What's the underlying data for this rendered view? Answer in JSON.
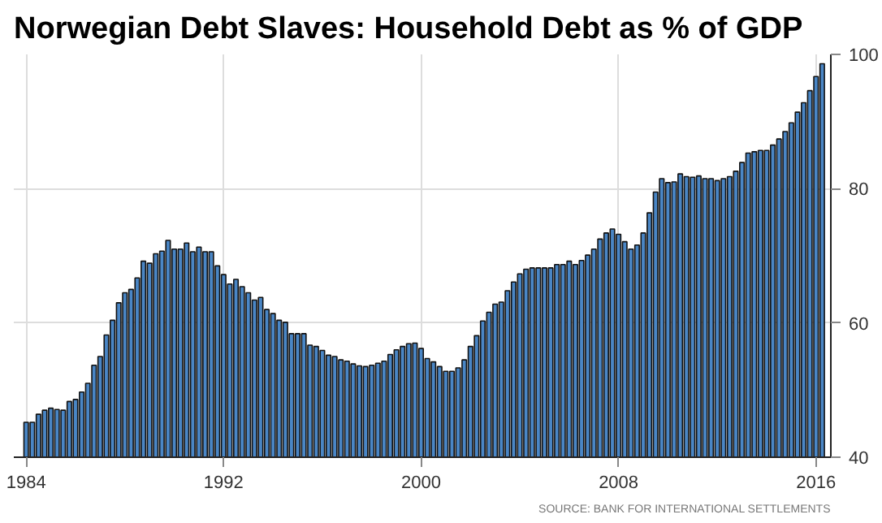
{
  "chart_data": {
    "type": "bar",
    "title": "Norwegian Debt Slaves: Household Debt as % of GDP",
    "annotations": [
      "SOURCE: BANK FOR INTERNATIONAL SETTLEMENTS"
    ],
    "x": [
      1984,
      1984.25,
      1984.5,
      1984.75,
      1985,
      1985.25,
      1985.5,
      1985.75,
      1986,
      1986.25,
      1986.5,
      1986.75,
      1987,
      1987.25,
      1987.5,
      1987.75,
      1988,
      1988.25,
      1988.5,
      1988.75,
      1989,
      1989.25,
      1989.5,
      1989.75,
      1990,
      1990.25,
      1990.5,
      1990.75,
      1991,
      1991.25,
      1991.5,
      1991.75,
      1992,
      1992.25,
      1992.5,
      1992.75,
      1993,
      1993.25,
      1993.5,
      1993.75,
      1994,
      1994.25,
      1994.5,
      1994.75,
      1995,
      1995.25,
      1995.5,
      1995.75,
      1996,
      1996.25,
      1996.5,
      1996.75,
      1997,
      1997.25,
      1997.5,
      1997.75,
      1998,
      1998.25,
      1998.5,
      1998.75,
      1999,
      1999.25,
      1999.5,
      1999.75,
      2000,
      2000.25,
      2000.5,
      2000.75,
      2001,
      2001.25,
      2001.5,
      2001.75,
      2002,
      2002.25,
      2002.5,
      2002.75,
      2003,
      2003.25,
      2003.5,
      2003.75,
      2004,
      2004.25,
      2004.5,
      2004.75,
      2005,
      2005.25,
      2005.5,
      2005.75,
      2006,
      2006.25,
      2006.5,
      2006.75,
      2007,
      2007.25,
      2007.5,
      2007.75,
      2008,
      2008.25,
      2008.5,
      2008.75,
      2009,
      2009.25,
      2009.5,
      2009.75,
      2010,
      2010.25,
      2010.5,
      2010.75,
      2011,
      2011.25,
      2011.5,
      2011.75,
      2012,
      2012.25,
      2012.5,
      2012.75,
      2013,
      2013.25,
      2013.5,
      2013.75,
      2014,
      2014.25,
      2014.5,
      2014.75,
      2015,
      2015.25,
      2015.5,
      2015.75,
      2016,
      2016.25
    ],
    "values": [
      45.2,
      45.2,
      46.4,
      47,
      47.3,
      47.1,
      47,
      48.3,
      48.6,
      49.7,
      51,
      53.7,
      55,
      58.2,
      60.4,
      63,
      64.5,
      65,
      66.7,
      69.2,
      68.9,
      70.3,
      70.7,
      72.3,
      71,
      71,
      71.9,
      70.6,
      71.3,
      70.6,
      70.6,
      68.5,
      67.2,
      65.8,
      66.5,
      65.4,
      64.5,
      63.4,
      63.8,
      62,
      61.4,
      60.4,
      60.1,
      58.4,
      58.4,
      58.4,
      56.7,
      56.5,
      55.9,
      55.2,
      55,
      54.5,
      54.3,
      53.9,
      53.6,
      53.5,
      53.7,
      54,
      54.3,
      55.3,
      56,
      56.5,
      56.9,
      57,
      56.2,
      54.7,
      54.2,
      53.5,
      52.8,
      52.8,
      53.3,
      54.5,
      56.5,
      58.1,
      60.3,
      61.6,
      62.8,
      63.1,
      64.8,
      66.1,
      67.3,
      68,
      68.2,
      68.2,
      68.2,
      68.2,
      68.7,
      68.7,
      69.2,
      68.7,
      69.3,
      70.1,
      71,
      72.5,
      73.4,
      74,
      73.2,
      72.1,
      71,
      71.6,
      73.4,
      76.4,
      79.5,
      81.5,
      80.9,
      81,
      82.2,
      81.8,
      81.7,
      81.9,
      81.5,
      81.5,
      81.2,
      81.5,
      81.8,
      82.6,
      83.9,
      85.3,
      85.5,
      85.7,
      85.7,
      86.5,
      87.4,
      88.5,
      89.8,
      91.4,
      92.8,
      94.6,
      96.7,
      98.6
    ],
    "color": "#4a86c5",
    "xlim": [
      1983.5,
      2016.6
    ],
    "xticks": [
      1984,
      1992,
      2000,
      2008,
      2016
    ],
    "ylim": [
      40,
      100
    ],
    "yticks": [
      40,
      60,
      80,
      100
    ],
    "grid": true
  }
}
